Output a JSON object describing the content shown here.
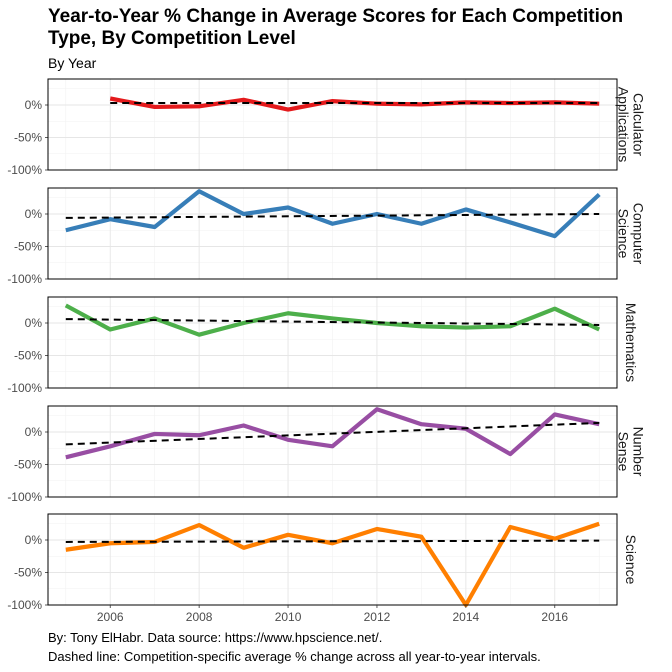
{
  "title": "Year-to-Year % Change in Average Scores for Each Competition Type, By Competition Level",
  "subtitle": "By Year",
  "caption": {
    "line1": "By: Tony ElHabr. Data source: https://www.hpscience.net/.",
    "line2": "Dashed line: Competition-specific average % change across all year-to-year intervals."
  },
  "colors": {
    "Calculator Applications": "#e41a1c",
    "Computer Science": "#377eb8",
    "Mathematics": "#4daf4a",
    "Number Sense": "#984ea3",
    "Science": "#ff7f00",
    "trend": "#000000"
  },
  "chart_data": {
    "type": "line",
    "facet": "rows",
    "xlabel": "",
    "ylabel": "",
    "xlim": [
      2004.6,
      2017.4
    ],
    "ylim": [
      -1.0,
      0.4
    ],
    "x_ticks": [
      2006,
      2008,
      2010,
      2012,
      2014,
      2016
    ],
    "y_ticks": [
      {
        "value": 0,
        "label": "0%"
      },
      {
        "value": -0.5,
        "label": "-50%"
      },
      {
        "value": -1.0,
        "label": "-100%"
      }
    ],
    "grid": true,
    "series": [
      {
        "name": "Calculator Applications",
        "strip_label": [
          "Calculator",
          "Applications"
        ],
        "x": [
          2006,
          2007,
          2008,
          2009,
          2010,
          2011,
          2012,
          2013,
          2014,
          2015,
          2016,
          2017
        ],
        "values": [
          0.1,
          -0.03,
          -0.02,
          0.08,
          -0.07,
          0.06,
          0.02,
          0.01,
          0.04,
          0.03,
          0.04,
          0.02
        ],
        "trend": [
          0.03,
          0.03
        ]
      },
      {
        "name": "Computer Science",
        "strip_label": [
          "Computer",
          "Science"
        ],
        "x": [
          2005,
          2006,
          2007,
          2008,
          2009,
          2010,
          2011,
          2012,
          2013,
          2014,
          2015,
          2016,
          2017
        ],
        "values": [
          -0.25,
          -0.08,
          -0.2,
          0.35,
          0.0,
          0.1,
          -0.15,
          0.0,
          -0.15,
          0.07,
          -0.13,
          -0.34,
          0.3
        ],
        "trend": [
          -0.06,
          0.0
        ]
      },
      {
        "name": "Mathematics",
        "strip_label": [
          "Mathematics"
        ],
        "x": [
          2005,
          2006,
          2007,
          2008,
          2009,
          2010,
          2011,
          2012,
          2013,
          2014,
          2015,
          2016,
          2017
        ],
        "values": [
          0.27,
          -0.1,
          0.07,
          -0.18,
          0.0,
          0.15,
          0.07,
          0.0,
          -0.05,
          -0.07,
          -0.05,
          0.22,
          -0.1
        ],
        "trend": [
          0.06,
          -0.03
        ]
      },
      {
        "name": "Number Sense",
        "strip_label": [
          "Number",
          "Sense"
        ],
        "x": [
          2005,
          2006,
          2007,
          2008,
          2009,
          2010,
          2011,
          2012,
          2013,
          2014,
          2015,
          2016,
          2017
        ],
        "values": [
          -0.39,
          -0.22,
          -0.03,
          -0.05,
          0.1,
          -0.12,
          -0.22,
          0.35,
          0.12,
          0.05,
          -0.34,
          0.27,
          0.12
        ],
        "trend": [
          -0.19,
          0.14
        ]
      },
      {
        "name": "Science",
        "strip_label": [
          "Science"
        ],
        "x": [
          2005,
          2006,
          2007,
          2008,
          2009,
          2010,
          2011,
          2012,
          2013,
          2014,
          2015,
          2016,
          2017
        ],
        "values": [
          -0.15,
          -0.05,
          -0.03,
          0.23,
          -0.12,
          0.08,
          -0.05,
          0.17,
          0.05,
          -1.0,
          0.2,
          0.02,
          0.25
        ],
        "trend": [
          -0.03,
          -0.01
        ]
      }
    ]
  }
}
